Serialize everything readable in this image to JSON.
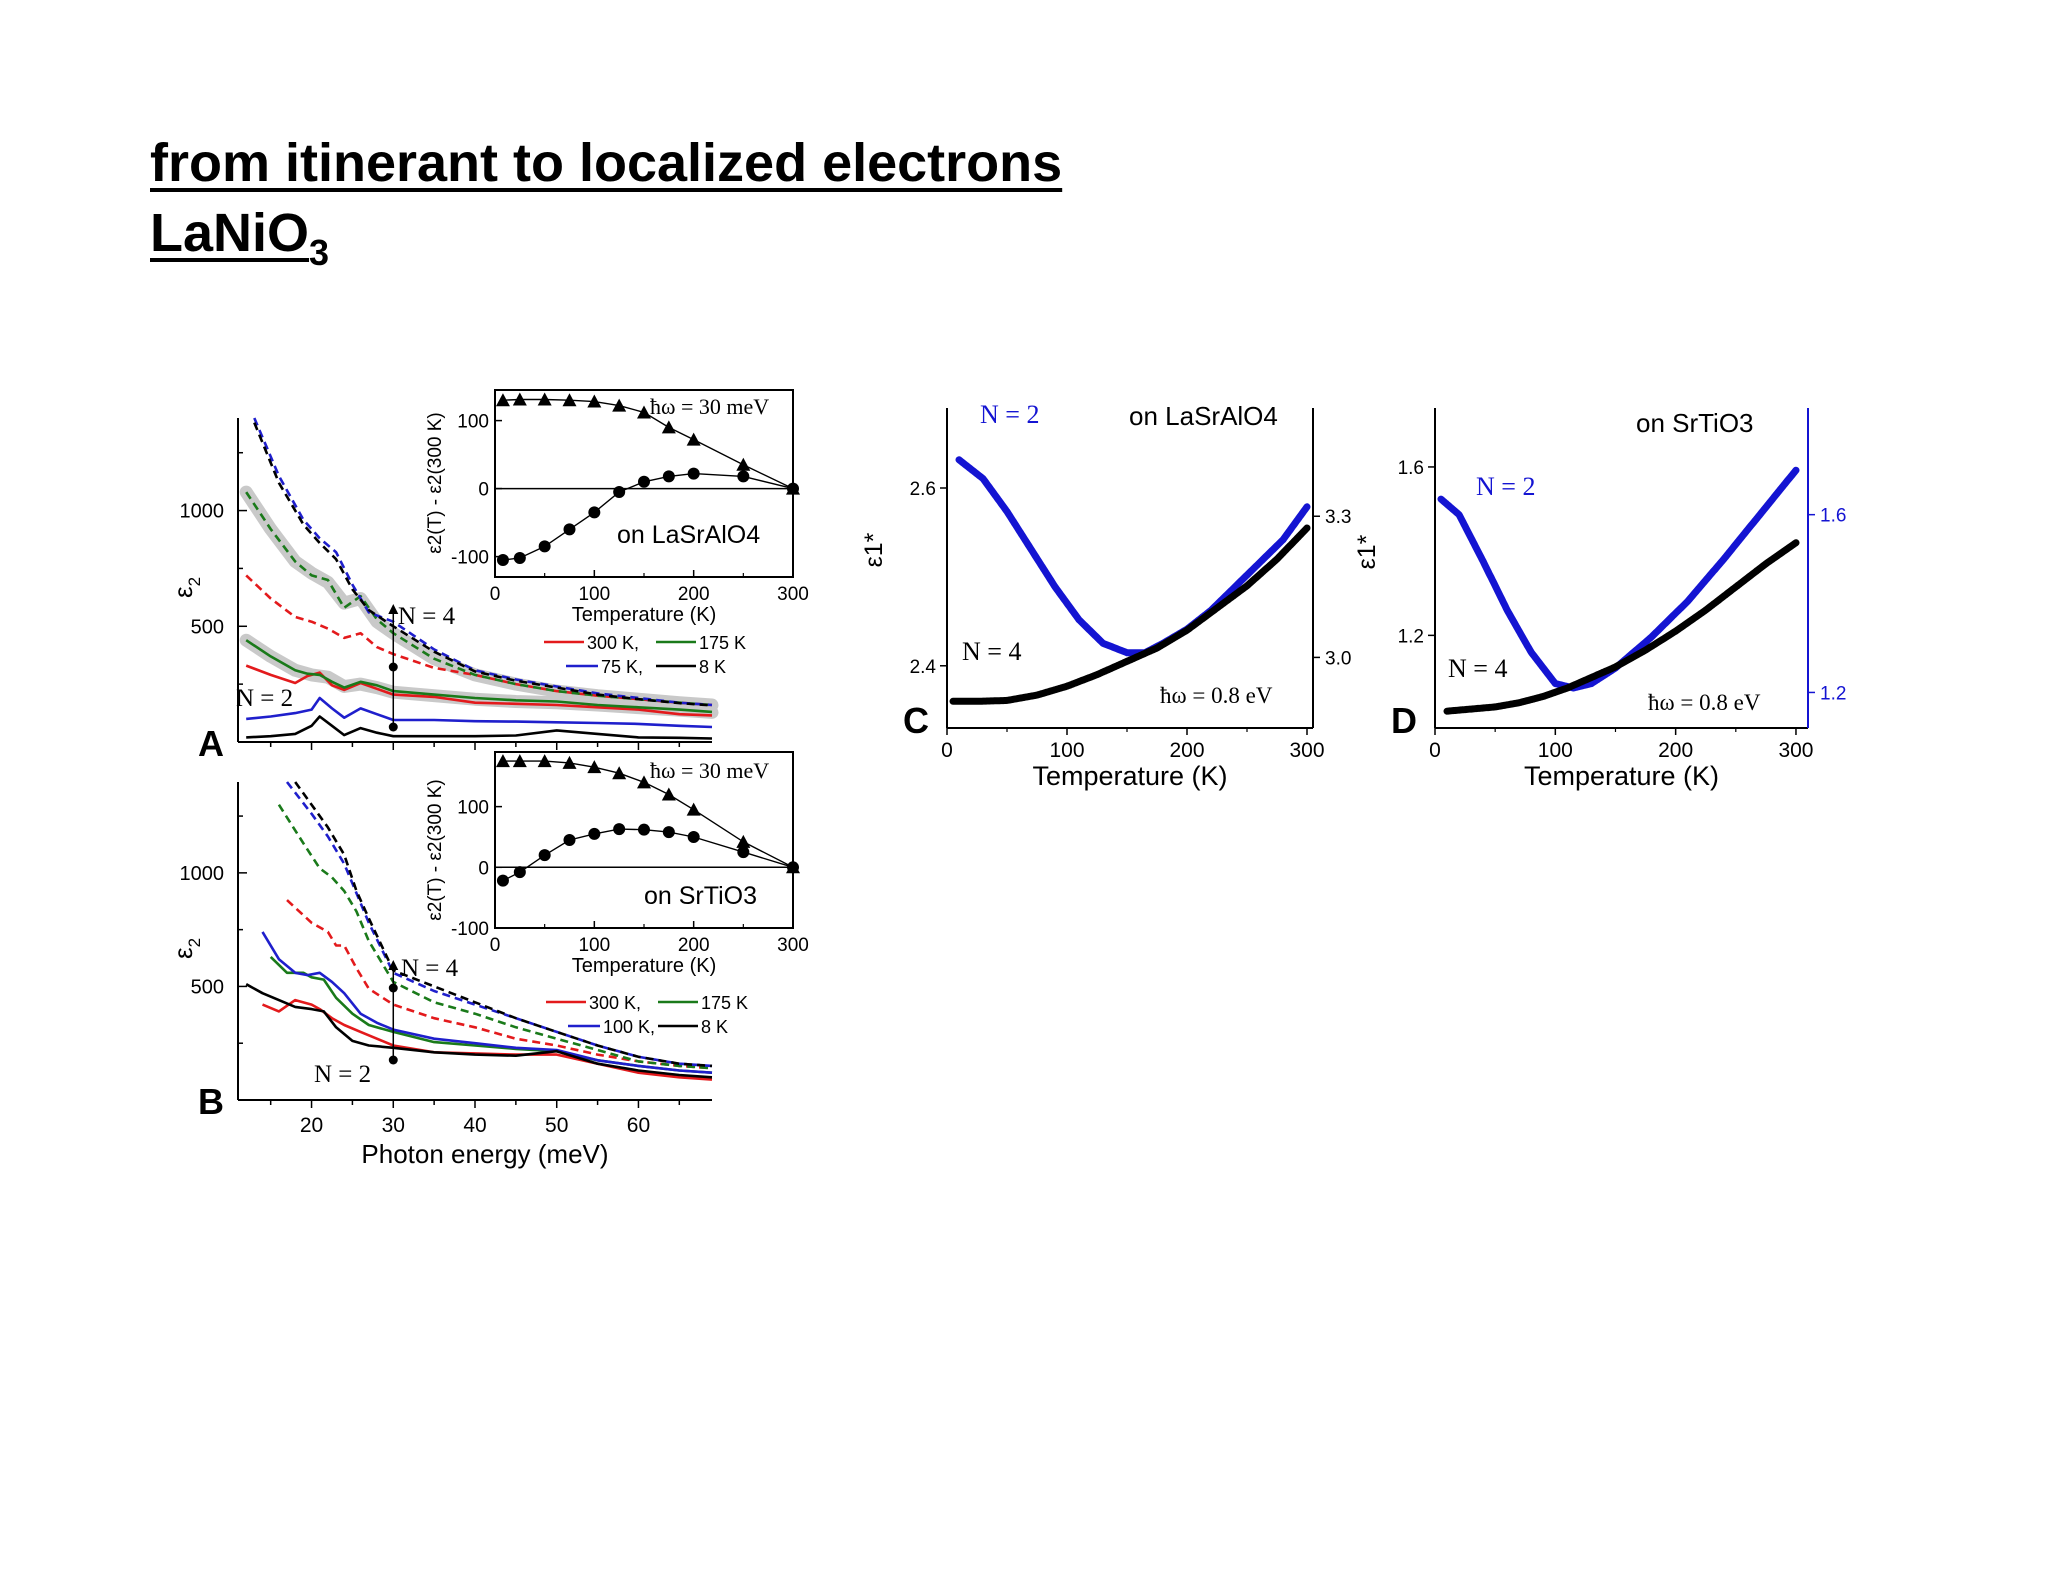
{
  "slide": {
    "title_line1": "from itinerant to localized electrons",
    "title_line2_main": "LaNiO",
    "title_line2_sub": "3"
  },
  "chart_data": [
    {
      "panel": "A",
      "type": "line",
      "xlabel": "",
      "ylabel": "ε2",
      "xlim": [
        11,
        69
      ],
      "ylim": [
        0,
        1400
      ],
      "yticks": [
        500,
        1000
      ],
      "xticks": [
        20,
        30,
        40,
        50,
        60
      ],
      "show_xtick_labels": false,
      "legend": [
        "300 K,",
        "175 K",
        "75 K,",
        "8 K"
      ],
      "annotations": [
        "N = 4",
        "N = 2"
      ],
      "series": [
        {
          "name": "300 K",
          "color": "#e31a1c",
          "style": "dashed",
          "x": [
            12,
            15,
            18,
            20,
            22,
            24,
            26,
            28,
            30,
            35,
            40,
            45,
            50,
            55,
            60,
            65,
            69
          ],
          "y": [
            720,
            620,
            540,
            520,
            490,
            450,
            470,
            410,
            380,
            320,
            290,
            250,
            220,
            200,
            185,
            170,
            160
          ]
        },
        {
          "name": "175 K",
          "color": "#1a7a1a",
          "style": "dashed",
          "x": [
            12,
            15,
            18,
            20,
            22,
            24,
            26,
            28,
            30,
            35,
            40,
            45,
            50,
            55,
            60,
            65,
            69
          ],
          "y": [
            1080,
            920,
            780,
            720,
            700,
            580,
            630,
            530,
            470,
            360,
            290,
            250,
            220,
            200,
            185,
            170,
            160
          ]
        },
        {
          "name": "75 K",
          "color": "#1f1fcc",
          "style": "dashed",
          "x": [
            13,
            16,
            19,
            21,
            23,
            25,
            27,
            30,
            35,
            40,
            45,
            50,
            55,
            60,
            65,
            69
          ],
          "y": [
            1400,
            1150,
            960,
            880,
            820,
            680,
            560,
            520,
            400,
            310,
            270,
            240,
            210,
            190,
            170,
            160
          ]
        },
        {
          "name": "8 K",
          "color": "#000000",
          "style": "dashed",
          "x": [
            13,
            16,
            19,
            21,
            23,
            25,
            27,
            30,
            35,
            40,
            45,
            50,
            55,
            60,
            65,
            69
          ],
          "y": [
            1380,
            1120,
            940,
            860,
            790,
            660,
            570,
            500,
            390,
            305,
            265,
            235,
            205,
            185,
            168,
            158
          ]
        },
        {
          "name": "300 K",
          "color": "#e31a1c",
          "style": "solid",
          "x": [
            12,
            15,
            18,
            19.5,
            21,
            22.5,
            24,
            26,
            28,
            30,
            35,
            40,
            45,
            50,
            55,
            60,
            65,
            69
          ],
          "y": [
            330,
            290,
            255,
            285,
            300,
            245,
            225,
            255,
            230,
            205,
            195,
            170,
            165,
            160,
            150,
            140,
            120,
            115
          ]
        },
        {
          "name": "175 K",
          "color": "#1a7a1a",
          "style": "solid",
          "x": [
            12,
            15,
            18,
            19.5,
            21,
            22.5,
            24,
            26,
            28,
            30,
            35,
            40,
            45,
            50,
            55,
            60,
            65,
            69
          ],
          "y": [
            440,
            370,
            310,
            295,
            290,
            260,
            235,
            260,
            245,
            220,
            205,
            190,
            180,
            175,
            160,
            150,
            140,
            130
          ]
        },
        {
          "name": "75 K",
          "color": "#1f1fcc",
          "style": "solid",
          "x": [
            12,
            15,
            18,
            20,
            21,
            22.5,
            24,
            26,
            28,
            30,
            35,
            40,
            45,
            50,
            55,
            60,
            65,
            69
          ],
          "y": [
            100,
            110,
            125,
            140,
            190,
            145,
            105,
            145,
            120,
            95,
            95,
            90,
            88,
            85,
            82,
            78,
            70,
            65
          ]
        },
        {
          "name": "8 K",
          "color": "#000000",
          "style": "solid",
          "x": [
            12,
            15,
            18,
            20,
            21,
            22.5,
            24,
            26,
            28,
            30,
            35,
            40,
            45,
            50,
            55,
            60,
            65,
            69
          ],
          "y": [
            20,
            25,
            35,
            70,
            110,
            70,
            30,
            60,
            40,
            25,
            25,
            25,
            28,
            50,
            35,
            20,
            18,
            15
          ]
        }
      ]
    },
    {
      "panel": "B",
      "type": "line",
      "xlabel": "Photon energy (meV)",
      "ylabel": "ε2",
      "xlim": [
        11,
        69
      ],
      "ylim": [
        0,
        1400
      ],
      "yticks": [
        500,
        1000
      ],
      "xticks": [
        20,
        30,
        40,
        50,
        60
      ],
      "legend": [
        "300 K,",
        "175 K",
        "100 K,",
        "8 K"
      ],
      "annotations": [
        "N = 4",
        "N = 2"
      ],
      "series": [
        {
          "name": "300 K",
          "color": "#e31a1c",
          "style": "dashed",
          "x": [
            17,
            20,
            22,
            23,
            24,
            25.5,
            27,
            30,
            35,
            40,
            45,
            50,
            55,
            60,
            65,
            69
          ],
          "y": [
            880,
            780,
            740,
            680,
            680,
            580,
            490,
            420,
            360,
            320,
            270,
            240,
            200,
            170,
            150,
            140
          ]
        },
        {
          "name": "175 K",
          "color": "#1a7a1a",
          "style": "dashed",
          "x": [
            16,
            19,
            21,
            22.5,
            24,
            25.5,
            27,
            30,
            35,
            40,
            45,
            50,
            55,
            60,
            65,
            69
          ],
          "y": [
            1300,
            1130,
            1020,
            980,
            920,
            830,
            700,
            520,
            430,
            380,
            320,
            270,
            220,
            170,
            150,
            140
          ]
        },
        {
          "name": "100 K",
          "color": "#1f1fcc",
          "style": "dashed",
          "x": [
            17,
            20,
            22,
            24,
            25.5,
            27,
            30,
            35,
            40,
            45,
            50,
            55,
            60,
            65,
            69
          ],
          "y": [
            1400,
            1260,
            1160,
            1040,
            910,
            780,
            560,
            480,
            420,
            360,
            300,
            240,
            190,
            160,
            150
          ]
        },
        {
          "name": "8 K",
          "color": "#000000",
          "style": "dashed",
          "x": [
            18,
            20,
            22,
            24,
            25.5,
            27,
            30,
            35,
            40,
            45,
            50,
            55,
            60,
            65,
            69
          ],
          "y": [
            1400,
            1300,
            1200,
            1080,
            920,
            800,
            570,
            500,
            430,
            360,
            300,
            240,
            190,
            160,
            150
          ]
        },
        {
          "name": "300 K",
          "color": "#e31a1c",
          "style": "solid",
          "x": [
            14,
            16,
            18,
            20,
            21,
            22.5,
            24,
            26,
            28,
            30,
            35,
            40,
            45,
            50,
            55,
            60,
            65,
            69
          ],
          "y": [
            420,
            390,
            440,
            420,
            400,
            360,
            330,
            300,
            270,
            240,
            210,
            205,
            200,
            200,
            160,
            120,
            100,
            90
          ]
        },
        {
          "name": "175 K",
          "color": "#1a7a1a",
          "style": "solid",
          "x": [
            15,
            17,
            19,
            20,
            21.5,
            23,
            25,
            27,
            30,
            35,
            40,
            45,
            50,
            55,
            60,
            65,
            69
          ],
          "y": [
            630,
            560,
            560,
            540,
            530,
            450,
            380,
            330,
            300,
            255,
            240,
            225,
            215,
            175,
            150,
            130,
            120
          ]
        },
        {
          "name": "100 K",
          "color": "#1f1fcc",
          "style": "solid",
          "x": [
            14,
            16,
            18,
            19.5,
            21,
            22.5,
            24,
            26,
            28,
            30,
            35,
            40,
            45,
            50,
            55,
            60,
            65,
            69
          ],
          "y": [
            740,
            620,
            560,
            550,
            560,
            520,
            470,
            380,
            340,
            310,
            270,
            250,
            230,
            220,
            175,
            150,
            130,
            120
          ]
        },
        {
          "name": "8 K",
          "color": "#000000",
          "style": "solid",
          "x": [
            12,
            14,
            16,
            18,
            20,
            21.5,
            23,
            25,
            27,
            30,
            35,
            40,
            45,
            50,
            55,
            60,
            65,
            69
          ],
          "y": [
            510,
            470,
            440,
            410,
            400,
            390,
            320,
            260,
            240,
            230,
            210,
            200,
            195,
            215,
            160,
            130,
            110,
            100
          ]
        }
      ]
    },
    {
      "panel": "A-inset",
      "type": "scatter",
      "xlabel": "Temperature (K)",
      "ylabel": "ε2(T) - ε2(300 K)",
      "xlim": [
        0,
        300
      ],
      "ylim": [
        -130,
        145
      ],
      "xticks": [
        0,
        100,
        200,
        300
      ],
      "yticks": [
        -100,
        0,
        100
      ],
      "annotations": [
        "ħω = 30 meV",
        "on LaSrAlO4"
      ],
      "series": [
        {
          "name": "N = 4",
          "marker": "triangle",
          "x": [
            8,
            25,
            50,
            75,
            100,
            125,
            150,
            175,
            200,
            250,
            300
          ],
          "y": [
            130,
            131,
            131,
            130,
            128,
            122,
            112,
            90,
            72,
            35,
            0
          ]
        },
        {
          "name": "N = 2",
          "marker": "circle",
          "x": [
            8,
            25,
            50,
            75,
            100,
            125,
            150,
            175,
            200,
            250,
            300
          ],
          "y": [
            -105,
            -102,
            -85,
            -60,
            -35,
            -5,
            10,
            18,
            22,
            18,
            0
          ]
        }
      ]
    },
    {
      "panel": "B-inset",
      "type": "scatter",
      "xlabel": "Temperature (K)",
      "ylabel": "ε2(T) - ε2(300 K)",
      "xlim": [
        0,
        300
      ],
      "ylim": [
        -100,
        190
      ],
      "xticks": [
        0,
        100,
        200,
        300
      ],
      "yticks": [
        -100,
        0,
        100
      ],
      "annotations": [
        "ħω = 30 meV",
        "on SrTiO3"
      ],
      "series": [
        {
          "name": "N = 4",
          "marker": "triangle",
          "x": [
            8,
            25,
            50,
            75,
            100,
            125,
            150,
            175,
            200,
            250,
            300
          ],
          "y": [
            175,
            175,
            175,
            172,
            165,
            155,
            140,
            120,
            95,
            42,
            0
          ]
        },
        {
          "name": "N = 2",
          "marker": "circle",
          "x": [
            8,
            25,
            50,
            75,
            100,
            125,
            150,
            175,
            200,
            250,
            300
          ],
          "y": [
            -22,
            -8,
            20,
            45,
            55,
            63,
            62,
            58,
            50,
            25,
            0
          ]
        }
      ]
    },
    {
      "panel": "C",
      "type": "scatter",
      "xlabel": "Temperature (K)",
      "ylabel": "ε1*",
      "title": "on LaSrAlO4",
      "xlim": [
        0,
        305
      ],
      "xticks": [
        0,
        100,
        200,
        300
      ],
      "ylim_left": [
        2.33,
        2.69
      ],
      "yticks_left": [
        2.4,
        2.6
      ],
      "ylim_right": [
        2.85,
        3.53
      ],
      "yticks_right": [
        3.0,
        3.3
      ],
      "annotations": [
        "N = 2",
        "N = 4",
        "ħω = 0.8 eV"
      ],
      "series": [
        {
          "name": "N = 2",
          "axis": "right",
          "color": "#1414d2",
          "x": [
            10,
            30,
            50,
            70,
            90,
            110,
            130,
            150,
            165,
            180,
            200,
            220,
            240,
            260,
            280,
            300
          ],
          "y": [
            3.42,
            3.38,
            3.31,
            3.23,
            3.15,
            3.08,
            3.03,
            3.01,
            3.01,
            3.03,
            3.06,
            3.1,
            3.15,
            3.2,
            3.25,
            3.32
          ]
        },
        {
          "name": "N = 4",
          "axis": "left",
          "color": "#000000",
          "x": [
            5,
            25,
            50,
            75,
            100,
            125,
            150,
            175,
            200,
            225,
            250,
            275,
            300
          ],
          "y": [
            2.36,
            2.36,
            2.361,
            2.367,
            2.377,
            2.39,
            2.405,
            2.42,
            2.44,
            2.465,
            2.49,
            2.52,
            2.555
          ]
        }
      ]
    },
    {
      "panel": "D",
      "type": "scatter",
      "xlabel": "Temperature (K)",
      "ylabel": "ε1*",
      "title": "on SrTiO3",
      "xlim": [
        0,
        310
      ],
      "xticks": [
        0,
        100,
        200,
        300
      ],
      "ylim_left": [
        0.98,
        1.74
      ],
      "yticks_left": [
        1.2,
        1.6
      ],
      "ylim_right": [
        1.12,
        1.84
      ],
      "yticks_right": [
        1.2,
        1.6
      ],
      "annotations": [
        "N = 2",
        "N = 4",
        "ħω = 0.8 eV"
      ],
      "series": [
        {
          "name": "N = 2",
          "axis": "right",
          "color": "#1414d2",
          "x": [
            5,
            20,
            40,
            60,
            80,
            100,
            115,
            130,
            150,
            180,
            210,
            240,
            270,
            300
          ],
          "y": [
            1.635,
            1.6,
            1.495,
            1.385,
            1.29,
            1.22,
            1.21,
            1.22,
            1.255,
            1.325,
            1.405,
            1.5,
            1.6,
            1.7
          ]
        },
        {
          "name": "N = 4",
          "axis": "left",
          "color": "#000000",
          "x": [
            10,
            30,
            50,
            70,
            90,
            110,
            130,
            150,
            175,
            200,
            225,
            250,
            275,
            300
          ],
          "y": [
            1.02,
            1.025,
            1.03,
            1.04,
            1.055,
            1.075,
            1.1,
            1.125,
            1.165,
            1.21,
            1.26,
            1.315,
            1.37,
            1.42
          ]
        }
      ]
    }
  ]
}
